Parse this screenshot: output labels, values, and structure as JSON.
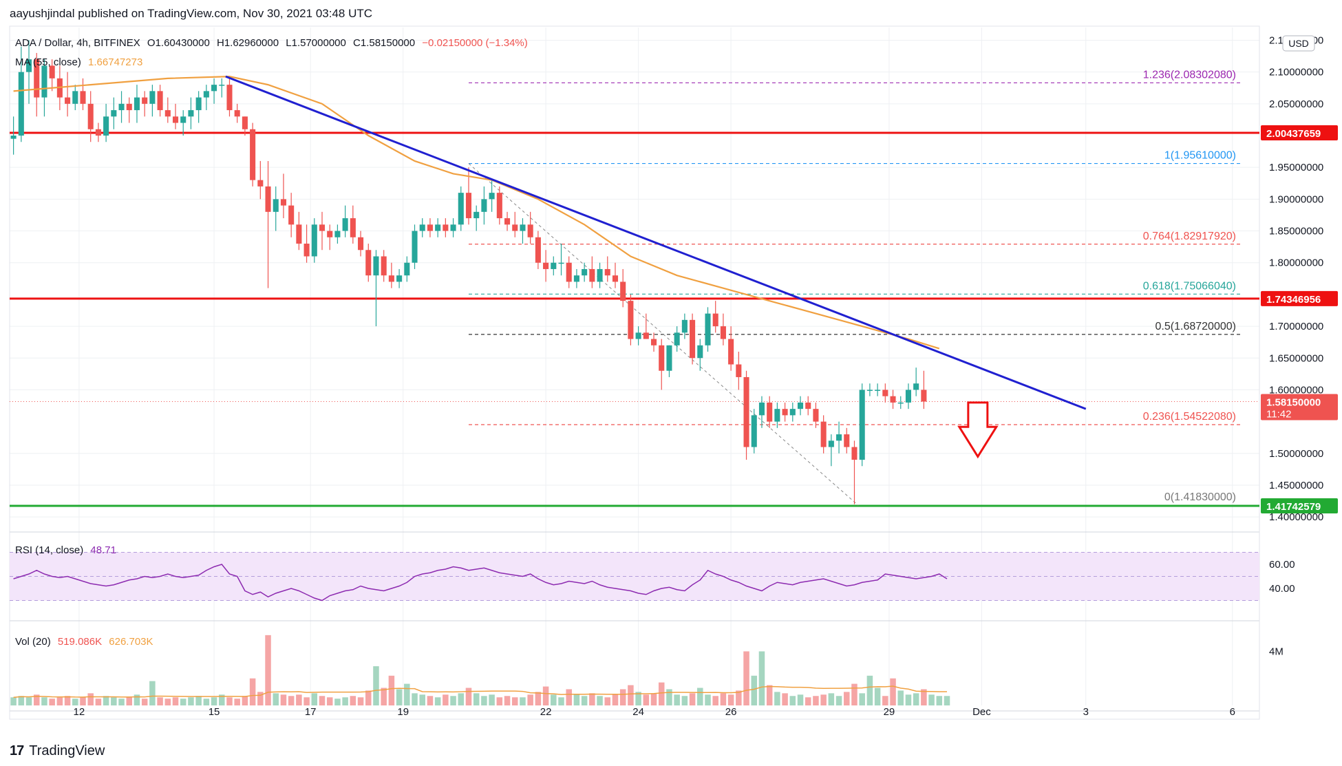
{
  "header": {
    "publisher_line": "aayushjindal published on TradingView.com, Nov 30, 2021 03:48 UTC"
  },
  "footer": {
    "brand": "TradingView",
    "logo_glyph": "17"
  },
  "symbol_legend": {
    "title": "ADA / Dollar, 4h, BITFINEX",
    "open": "O1.60430000",
    "high": "H1.62960000",
    "low": "L1.57000000",
    "close": "C1.58150000",
    "change": "−0.02150000 (−1.34%)"
  },
  "ma_legend": {
    "label": "MA (55, close)",
    "value": "1.66747273"
  },
  "rsi_legend": {
    "label": "RSI (14, close)",
    "value": "48.71"
  },
  "vol_legend": {
    "label": "Vol (20)",
    "value1": "519.086K",
    "value2": "626.703K"
  },
  "currency": "USD",
  "colors": {
    "up": "#26a69a",
    "down": "#ef5350",
    "ma": "#f0a040",
    "trend": "#2020d0",
    "resistance": "#ee1111",
    "support": "#22aa33",
    "rsi": "#8c2ab0",
    "rsi_band": "#f3e5fa",
    "vol_up": "#a5d6c0",
    "vol_down": "#f5a5a5",
    "grid": "#eef0f3",
    "axis_text": "#131722"
  },
  "chart_data": {
    "type": "candlestick",
    "price_axis": {
      "range": [
        1.385,
        2.17
      ],
      "ticks": [
        "2.15000000",
        "2.10000000",
        "2.05000000",
        "1.95000000",
        "1.90000000",
        "1.85000000",
        "1.80000000",
        "1.70000000",
        "1.65000000",
        "1.60000000",
        "1.50000000",
        "1.45000000",
        "1.40000000"
      ],
      "tick_values": [
        2.15,
        2.1,
        2.05,
        1.95,
        1.9,
        1.85,
        1.8,
        1.7,
        1.65,
        1.6,
        1.5,
        1.45,
        1.4
      ]
    },
    "time_axis": {
      "labels": [
        "12",
        "15",
        "17",
        "19",
        "22",
        "24",
        "26",
        "29",
        "Dec",
        "3",
        "6"
      ],
      "bar_index": [
        8.5,
        26,
        38.5,
        50.5,
        69,
        81,
        93,
        113.5,
        125.5,
        139,
        158
      ],
      "total_slots": 162
    },
    "price_labels": [
      {
        "text": "2.00437659",
        "value": 2.00437659,
        "color": "#ee1111"
      },
      {
        "text": "1.74346956",
        "value": 1.74346956,
        "color": "#ee1111"
      },
      {
        "text": "1.58150000",
        "value": 1.5815,
        "color": "#ef5350",
        "sub": "11:42"
      },
      {
        "text": "1.41742579",
        "value": 1.41742579,
        "color": "#22aa33"
      }
    ],
    "horizontal_lines": [
      {
        "name": "resistance-upper",
        "value": 2.00437659,
        "color": "#ee1111"
      },
      {
        "name": "resistance-lower",
        "value": 1.74346956,
        "color": "#ee1111"
      },
      {
        "name": "support",
        "value": 1.41742579,
        "color": "#22aa33"
      }
    ],
    "fib_levels": [
      {
        "label": "1.236(2.08302080)",
        "value": 2.0830208,
        "color": "#9c27b0"
      },
      {
        "label": "1(1.95610000)",
        "value": 1.9561,
        "color": "#2196f3"
      },
      {
        "label": "0.764(1.82917920)",
        "value": 1.8291792,
        "color": "#ef5350"
      },
      {
        "label": "0.618(1.75066040)",
        "value": 1.7506604,
        "color": "#26a69a"
      },
      {
        "label": "0.5(1.68720000)",
        "value": 1.6872,
        "color": "#333333"
      },
      {
        "label": "0.236(1.54522080)",
        "value": 1.5452208,
        "color": "#ef5350"
      },
      {
        "label": "0(1.41830000)",
        "value": 1.4183,
        "color": "#777777"
      }
    ],
    "fib_range": {
      "start_bar": 59,
      "end_bar": 159
    },
    "fib_diagonal": {
      "from": {
        "bar": 59,
        "price": 1.9561
      },
      "to": {
        "bar": 109.5,
        "price": 1.4183
      }
    },
    "trend_line": {
      "from": {
        "bar": 27.5,
        "price": 2.093
      },
      "to": {
        "bar": 139,
        "price": 1.57
      }
    },
    "down_arrow": {
      "bar": 125,
      "top_price": 1.58,
      "bottom_price": 1.495
    },
    "ohlc": [
      [
        1.995,
        2.03,
        1.97,
        2.0
      ],
      [
        2.0,
        2.14,
        1.99,
        2.1
      ],
      [
        2.1,
        2.15,
        2.05,
        2.12
      ],
      [
        2.12,
        2.13,
        2.03,
        2.06
      ],
      [
        2.06,
        2.12,
        2.03,
        2.11
      ],
      [
        2.11,
        2.12,
        2.07,
        2.09
      ],
      [
        2.09,
        2.11,
        2.04,
        2.06
      ],
      [
        2.06,
        2.1,
        2.03,
        2.05
      ],
      [
        2.05,
        2.08,
        2.04,
        2.07
      ],
      [
        2.07,
        2.09,
        2.04,
        2.05
      ],
      [
        2.05,
        2.07,
        1.99,
        2.01
      ],
      [
        2.01,
        2.02,
        1.99,
        2.0
      ],
      [
        2.0,
        2.05,
        1.99,
        2.03
      ],
      [
        2.03,
        2.06,
        2.01,
        2.04
      ],
      [
        2.04,
        2.07,
        2.02,
        2.05
      ],
      [
        2.05,
        2.06,
        2.02,
        2.04
      ],
      [
        2.04,
        2.08,
        2.02,
        2.06
      ],
      [
        2.06,
        2.07,
        2.03,
        2.05
      ],
      [
        2.05,
        2.08,
        2.03,
        2.07
      ],
      [
        2.07,
        2.08,
        2.03,
        2.04
      ],
      [
        2.04,
        2.06,
        2.02,
        2.03
      ],
      [
        2.03,
        2.05,
        2.01,
        2.02
      ],
      [
        2.02,
        2.04,
        2.0,
        2.03
      ],
      [
        2.03,
        2.06,
        2.01,
        2.04
      ],
      [
        2.04,
        2.07,
        2.02,
        2.06
      ],
      [
        2.06,
        2.08,
        2.04,
        2.07
      ],
      [
        2.07,
        2.09,
        2.05,
        2.08
      ],
      [
        2.08,
        2.09,
        2.06,
        2.08
      ],
      [
        2.08,
        2.09,
        2.03,
        2.04
      ],
      [
        2.04,
        2.05,
        2.02,
        2.03
      ],
      [
        2.03,
        2.03,
        2.0,
        2.01
      ],
      [
        2.01,
        2.02,
        1.92,
        1.93
      ],
      [
        1.93,
        1.96,
        1.9,
        1.92
      ],
      [
        1.92,
        1.96,
        1.76,
        1.88
      ],
      [
        1.88,
        1.92,
        1.85,
        1.9
      ],
      [
        1.9,
        1.94,
        1.87,
        1.89
      ],
      [
        1.89,
        1.91,
        1.84,
        1.86
      ],
      [
        1.86,
        1.88,
        1.82,
        1.83
      ],
      [
        1.83,
        1.86,
        1.8,
        1.81
      ],
      [
        1.81,
        1.87,
        1.8,
        1.86
      ],
      [
        1.86,
        1.88,
        1.82,
        1.85
      ],
      [
        1.85,
        1.86,
        1.82,
        1.84
      ],
      [
        1.84,
        1.86,
        1.83,
        1.85
      ],
      [
        1.85,
        1.89,
        1.84,
        1.87
      ],
      [
        1.87,
        1.89,
        1.83,
        1.84
      ],
      [
        1.84,
        1.85,
        1.81,
        1.82
      ],
      [
        1.82,
        1.83,
        1.77,
        1.78
      ],
      [
        1.78,
        1.82,
        1.7,
        1.81
      ],
      [
        1.81,
        1.82,
        1.77,
        1.78
      ],
      [
        1.78,
        1.8,
        1.76,
        1.77
      ],
      [
        1.77,
        1.79,
        1.76,
        1.78
      ],
      [
        1.78,
        1.81,
        1.77,
        1.8
      ],
      [
        1.8,
        1.86,
        1.79,
        1.85
      ],
      [
        1.85,
        1.87,
        1.84,
        1.86
      ],
      [
        1.86,
        1.87,
        1.84,
        1.85
      ],
      [
        1.85,
        1.87,
        1.84,
        1.86
      ],
      [
        1.86,
        1.87,
        1.84,
        1.85
      ],
      [
        1.85,
        1.87,
        1.84,
        1.86
      ],
      [
        1.86,
        1.92,
        1.85,
        1.91
      ],
      [
        1.91,
        1.95,
        1.86,
        1.87
      ],
      [
        1.87,
        1.89,
        1.85,
        1.88
      ],
      [
        1.88,
        1.92,
        1.86,
        1.9
      ],
      [
        1.9,
        1.93,
        1.88,
        1.91
      ],
      [
        1.91,
        1.92,
        1.86,
        1.87
      ],
      [
        1.87,
        1.88,
        1.85,
        1.86
      ],
      [
        1.86,
        1.88,
        1.84,
        1.85
      ],
      [
        1.85,
        1.87,
        1.83,
        1.86
      ],
      [
        1.86,
        1.88,
        1.83,
        1.84
      ],
      [
        1.84,
        1.85,
        1.79,
        1.8
      ],
      [
        1.8,
        1.82,
        1.77,
        1.79
      ],
      [
        1.79,
        1.81,
        1.78,
        1.8
      ],
      [
        1.8,
        1.83,
        1.78,
        1.8
      ],
      [
        1.8,
        1.81,
        1.76,
        1.77
      ],
      [
        1.77,
        1.79,
        1.76,
        1.78
      ],
      [
        1.78,
        1.8,
        1.77,
        1.79
      ],
      [
        1.79,
        1.81,
        1.76,
        1.77
      ],
      [
        1.77,
        1.8,
        1.76,
        1.79
      ],
      [
        1.79,
        1.81,
        1.77,
        1.78
      ],
      [
        1.78,
        1.8,
        1.76,
        1.77
      ],
      [
        1.77,
        1.79,
        1.73,
        1.74
      ],
      [
        1.74,
        1.75,
        1.67,
        1.68
      ],
      [
        1.68,
        1.7,
        1.67,
        1.69
      ],
      [
        1.69,
        1.72,
        1.68,
        1.68
      ],
      [
        1.68,
        1.69,
        1.66,
        1.67
      ],
      [
        1.67,
        1.68,
        1.6,
        1.63
      ],
      [
        1.63,
        1.67,
        1.62,
        1.67
      ],
      [
        1.67,
        1.7,
        1.66,
        1.69
      ],
      [
        1.69,
        1.72,
        1.68,
        1.71
      ],
      [
        1.71,
        1.72,
        1.64,
        1.65
      ],
      [
        1.65,
        1.68,
        1.63,
        1.67
      ],
      [
        1.67,
        1.73,
        1.66,
        1.72
      ],
      [
        1.72,
        1.74,
        1.69,
        1.7
      ],
      [
        1.7,
        1.72,
        1.67,
        1.68
      ],
      [
        1.68,
        1.7,
        1.63,
        1.64
      ],
      [
        1.64,
        1.66,
        1.6,
        1.62
      ],
      [
        1.62,
        1.63,
        1.49,
        1.51
      ],
      [
        1.51,
        1.57,
        1.5,
        1.56
      ],
      [
        1.56,
        1.59,
        1.54,
        1.58
      ],
      [
        1.58,
        1.59,
        1.54,
        1.55
      ],
      [
        1.55,
        1.58,
        1.54,
        1.57
      ],
      [
        1.57,
        1.58,
        1.55,
        1.56
      ],
      [
        1.56,
        1.58,
        1.55,
        1.57
      ],
      [
        1.57,
        1.59,
        1.56,
        1.58
      ],
      [
        1.58,
        1.59,
        1.56,
        1.57
      ],
      [
        1.57,
        1.58,
        1.54,
        1.55
      ],
      [
        1.55,
        1.56,
        1.5,
        1.51
      ],
      [
        1.51,
        1.53,
        1.48,
        1.52
      ],
      [
        1.52,
        1.55,
        1.5,
        1.53
      ],
      [
        1.53,
        1.54,
        1.5,
        1.51
      ],
      [
        1.51,
        1.52,
        1.42,
        1.49
      ],
      [
        1.49,
        1.61,
        1.48,
        1.6
      ],
      [
        1.6,
        1.61,
        1.59,
        1.6
      ],
      [
        1.6,
        1.61,
        1.59,
        1.6
      ],
      [
        1.6,
        1.61,
        1.58,
        1.59
      ],
      [
        1.59,
        1.6,
        1.57,
        1.58
      ],
      [
        1.58,
        1.59,
        1.57,
        1.58
      ],
      [
        1.58,
        1.61,
        1.57,
        1.6
      ],
      [
        1.6,
        1.635,
        1.59,
        1.61
      ],
      [
        1.6,
        1.63,
        1.57,
        1.5815
      ]
    ],
    "ma55": [
      [
        0,
        2.07
      ],
      [
        10,
        2.08
      ],
      [
        20,
        2.09
      ],
      [
        28,
        2.093
      ],
      [
        33,
        2.08
      ],
      [
        40,
        2.05
      ],
      [
        46,
        2.0
      ],
      [
        52,
        1.96
      ],
      [
        57,
        1.94
      ],
      [
        62,
        1.93
      ],
      [
        68,
        1.9
      ],
      [
        74,
        1.86
      ],
      [
        80,
        1.81
      ],
      [
        86,
        1.78
      ],
      [
        92,
        1.76
      ],
      [
        98,
        1.74
      ],
      [
        104,
        1.72
      ],
      [
        110,
        1.7
      ],
      [
        116,
        1.68
      ],
      [
        120,
        1.665
      ]
    ],
    "rsi": {
      "ticks": [
        {
          "label": "60.00",
          "value": 60
        },
        {
          "label": "40.00",
          "value": 40
        }
      ],
      "band": [
        30,
        70
      ],
      "range": [
        20,
        80
      ],
      "values": [
        48,
        50,
        52,
        55,
        52,
        50,
        49,
        50,
        48,
        46,
        44,
        43,
        42,
        43,
        45,
        47,
        48,
        50,
        49,
        50,
        52,
        50,
        49,
        50,
        51,
        55,
        58,
        60,
        52,
        50,
        38,
        35,
        37,
        33,
        36,
        38,
        40,
        38,
        35,
        32,
        30,
        34,
        36,
        38,
        39,
        42,
        40,
        39,
        38,
        40,
        42,
        45,
        50,
        52,
        53,
        55,
        56,
        58,
        57,
        55,
        56,
        57,
        55,
        53,
        52,
        51,
        50,
        52,
        48,
        45,
        43,
        44,
        46,
        45,
        44,
        46,
        43,
        41,
        40,
        39,
        38,
        36,
        35,
        38,
        40,
        41,
        39,
        38,
        43,
        47,
        55,
        52,
        50,
        47,
        45,
        42,
        40,
        38,
        42,
        45,
        44,
        43,
        45,
        46,
        47,
        48,
        46,
        44,
        42,
        43,
        45,
        46,
        47,
        52,
        51,
        50,
        49,
        48,
        49,
        50,
        52,
        48
      ]
    },
    "volume": {
      "tick": {
        "label": "4M",
        "value": 4.0
      },
      "range": [
        0,
        5.6
      ],
      "values": [
        0.6,
        0.7,
        0.6,
        0.8,
        0.6,
        0.5,
        0.6,
        0.7,
        0.5,
        0.6,
        0.9,
        0.5,
        0.7,
        0.6,
        0.5,
        0.6,
        0.8,
        0.5,
        1.8,
        0.6,
        0.5,
        0.6,
        0.5,
        0.6,
        0.7,
        0.5,
        0.6,
        0.8,
        0.6,
        0.5,
        0.7,
        2.0,
        1.0,
        5.2,
        0.9,
        0.8,
        0.7,
        0.8,
        0.6,
        0.9,
        0.7,
        0.6,
        0.5,
        0.6,
        0.7,
        0.6,
        1.1,
        2.9,
        1.3,
        2.2,
        1.2,
        1.6,
        0.9,
        0.8,
        0.7,
        0.6,
        0.8,
        0.7,
        0.9,
        1.3,
        0.9,
        0.7,
        0.8,
        0.6,
        0.7,
        0.6,
        0.6,
        0.8,
        1.0,
        1.4,
        0.8,
        0.6,
        1.2,
        0.8,
        0.7,
        0.9,
        0.7,
        0.6,
        0.8,
        1.2,
        1.5,
        1.0,
        0.8,
        0.9,
        1.7,
        1.2,
        0.8,
        0.7,
        0.9,
        1.3,
        0.8,
        0.7,
        0.9,
        0.8,
        1.1,
        4.0,
        2.2,
        4.0,
        1.5,
        1.0,
        0.9,
        0.7,
        0.8,
        0.6,
        0.7,
        0.8,
        0.9,
        0.7,
        1.0,
        1.6,
        0.9,
        2.2,
        1.3,
        0.7,
        2.0,
        1.1,
        0.8,
        0.9,
        1.2,
        0.8,
        0.7,
        0.7
      ]
    },
    "time_labels": [
      "12",
      "15",
      "17",
      "19",
      "22",
      "24",
      "26",
      "29",
      "Dec",
      "3",
      "6"
    ]
  }
}
